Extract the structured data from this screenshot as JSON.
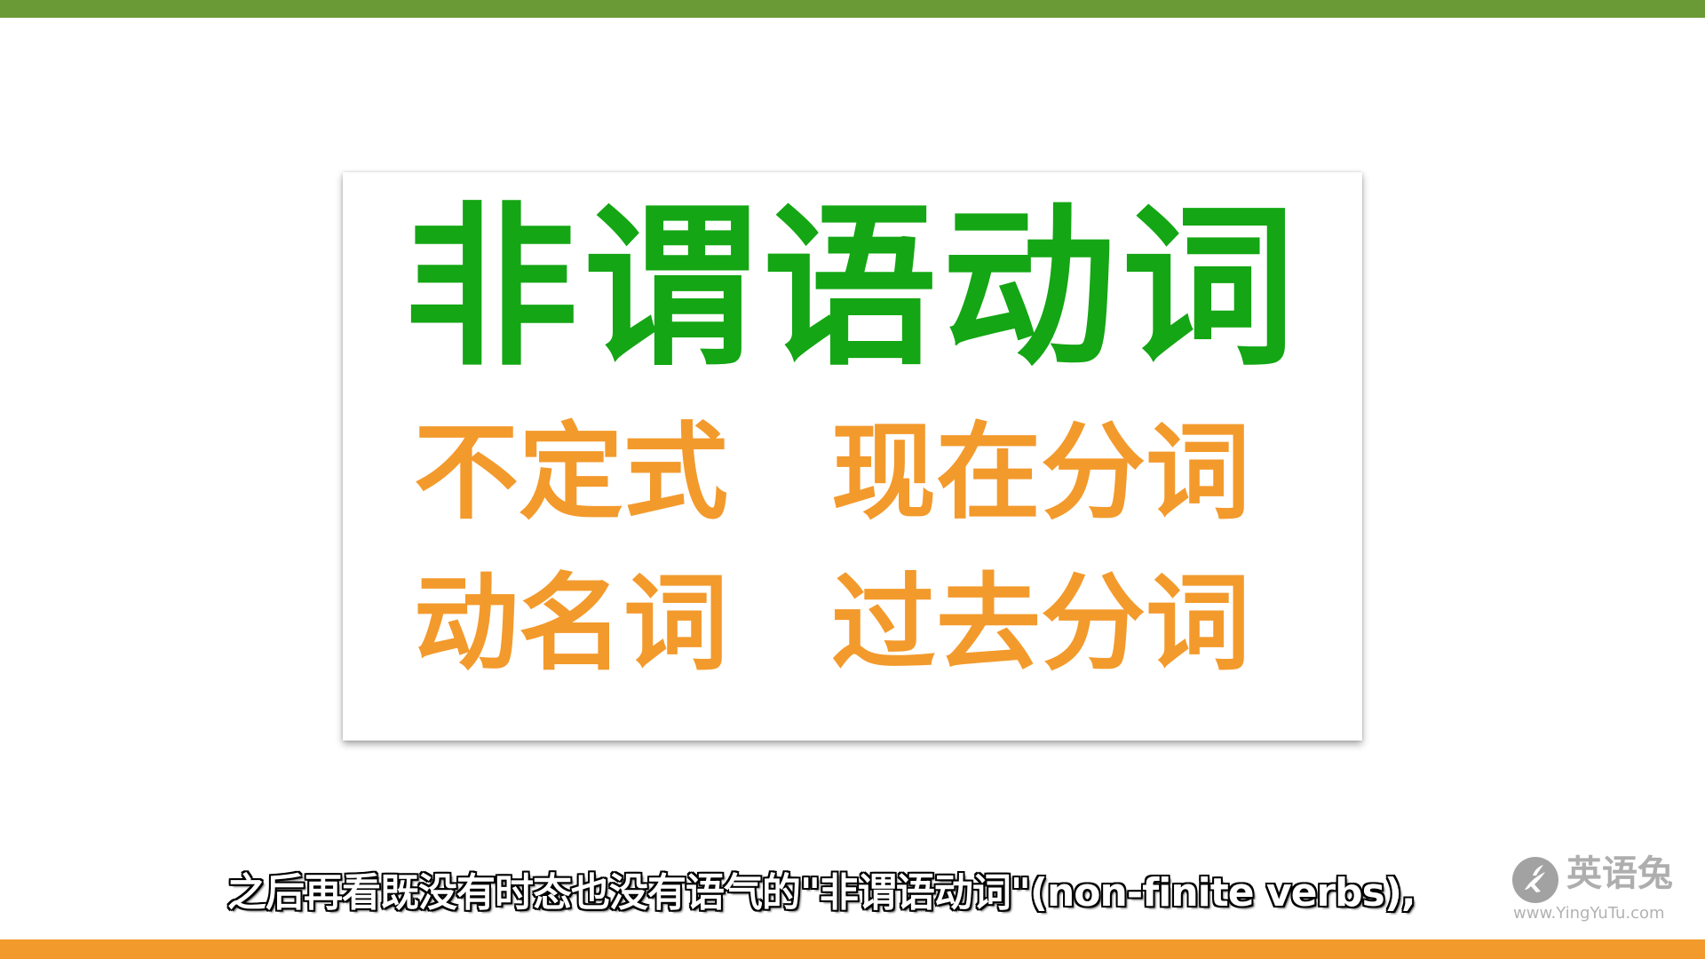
{
  "slide": {
    "title": "非谓语动词",
    "terms": [
      "不定式",
      "现在分词",
      "动名词",
      "过去分词"
    ]
  },
  "subtitle": {
    "text": "之后再看既没有时态也没有语气的\"非谓语动词\"(non-finite verbs),"
  },
  "watermark": {
    "logo_icon": "rabbit-logo-icon",
    "name": "英语兔",
    "url": "www.YingYuTu.com"
  },
  "colors": {
    "top_bar": "#6a9a35",
    "bottom_bar": "#f39a2c",
    "title": "#14a614",
    "terms": "#f39a2c",
    "subtitle_text": "#ffffff",
    "subtitle_outline": "#000000"
  }
}
